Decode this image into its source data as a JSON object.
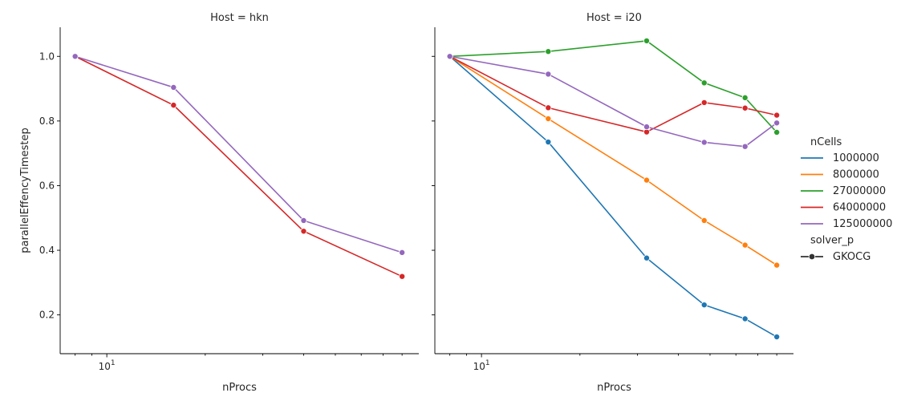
{
  "chart_data": {
    "type": "line",
    "x_scale": "log",
    "ylabel": "parallelEffencyTimestep",
    "ylim": [
      0.08,
      1.09
    ],
    "xlim": [
      7.2,
      90
    ],
    "y_ticks": [
      0.2,
      0.4,
      0.6,
      0.8,
      1.0
    ],
    "y_tick_labels": [
      "0.2",
      "0.4",
      "0.6",
      "0.8",
      "1.0"
    ],
    "x_major_ticks": [
      10
    ],
    "x_major_tick_labels": [
      "10"
    ],
    "x_major_tick_exponent": "1",
    "x_minor_ticks": [
      8,
      9,
      20,
      30,
      40,
      50,
      60,
      70,
      80
    ],
    "grid": false,
    "legend": {
      "placement": "right",
      "hue_title": "nCells",
      "style_title": "solver_p",
      "style_entries": [
        "GKOCG"
      ]
    },
    "colors": {
      "1000000": "#1f77b4",
      "8000000": "#ff7f0e",
      "27000000": "#2ca02c",
      "64000000": "#d62728",
      "125000000": "#9467bd"
    },
    "hue_order": [
      "1000000",
      "8000000",
      "27000000",
      "64000000",
      "125000000"
    ],
    "panels": [
      {
        "title": "Host = hkn",
        "xlabel": "nProcs",
        "series": [
          {
            "name": "64000000",
            "x": [
              8,
              16,
              40,
              80
            ],
            "y": [
              1.0,
              0.849,
              0.459,
              0.319
            ]
          },
          {
            "name": "125000000",
            "x": [
              8,
              16,
              40,
              80
            ],
            "y": [
              1.0,
              0.904,
              0.492,
              0.393
            ]
          }
        ]
      },
      {
        "title": "Host = i20",
        "xlabel": "nProcs",
        "series": [
          {
            "name": "1000000",
            "x": [
              8,
              16,
              32,
              48,
              64,
              80
            ],
            "y": [
              1.0,
              0.735,
              0.376,
              0.231,
              0.188,
              0.132
            ]
          },
          {
            "name": "8000000",
            "x": [
              8,
              16,
              32,
              48,
              64,
              80
            ],
            "y": [
              1.0,
              0.807,
              0.617,
              0.492,
              0.416,
              0.354
            ]
          },
          {
            "name": "27000000",
            "x": [
              8,
              16,
              32,
              48,
              64,
              80
            ],
            "y": [
              1.0,
              1.015,
              1.048,
              0.918,
              0.872,
              0.765
            ]
          },
          {
            "name": "64000000",
            "x": [
              8,
              16,
              32,
              48,
              64,
              80
            ],
            "y": [
              1.0,
              0.841,
              0.766,
              0.857,
              0.84,
              0.818
            ]
          },
          {
            "name": "125000000",
            "x": [
              8,
              16,
              32,
              48,
              64,
              80
            ],
            "y": [
              1.0,
              0.945,
              0.782,
              0.734,
              0.721,
              0.794
            ]
          }
        ]
      }
    ]
  }
}
